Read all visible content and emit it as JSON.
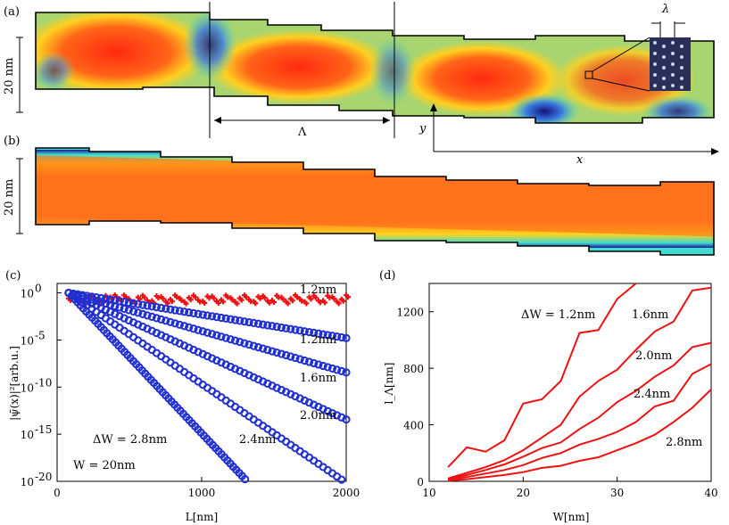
{
  "panels": {
    "a": {
      "label": "(a)",
      "scale_label": "20 nm",
      "period_label": "Λ",
      "lambda_label": "λ",
      "x_axis_label": "x",
      "y_axis_label": "y"
    },
    "b": {
      "label": "(b)",
      "scale_label": "20 nm"
    }
  },
  "chart_data": [
    {
      "id": "c",
      "panel_label": "(c)",
      "type": "scatter",
      "xlabel": "L[nm]",
      "ylabel": "|ψ̄(x)|²[arb.u.]",
      "xlim": [
        0,
        2000
      ],
      "ylog": true,
      "ylim_exponent": [
        -20,
        1
      ],
      "xticks": [
        "0",
        "1000",
        "2000"
      ],
      "yticks": [
        {
          "mantissa": "10",
          "exp": "0"
        },
        {
          "mantissa": "10",
          "exp": "-5"
        },
        {
          "mantissa": "10",
          "exp": "-10"
        },
        {
          "mantissa": "10",
          "exp": "-15"
        },
        {
          "mantissa": "10",
          "exp": "-20"
        }
      ],
      "annotations": {
        "W": "W = 20nm",
        "dW": "ΔW = 2.8nm"
      },
      "series": [
        {
          "label": "1.2nm",
          "color": "#ee1111",
          "x_range": [
            80,
            2000
          ],
          "slope_per_1000nm": 0.0,
          "noisy": true
        },
        {
          "label": "1.2nm",
          "color": "#1f2fd0",
          "x_range": [
            80,
            2000
          ],
          "slope_per_1000nm": -2.5
        },
        {
          "label": "1.6nm",
          "color": "#1f2fd0",
          "x_range": [
            80,
            2000
          ],
          "slope_per_1000nm": -4.4
        },
        {
          "label": "2.0nm",
          "color": "#1f2fd0",
          "x_range": [
            80,
            2000
          ],
          "slope_per_1000nm": -7.0
        },
        {
          "label": "2.4nm",
          "color": "#1f2fd0",
          "x_range": [
            80,
            2000
          ],
          "slope_per_1000nm": -10.5
        },
        {
          "label": "",
          "color": "#1f2fd0",
          "x_range": [
            80,
            1300
          ],
          "slope_per_1000nm": -16.2
        }
      ]
    },
    {
      "id": "d",
      "panel_label": "(d)",
      "type": "line",
      "xlabel": "W[nm]",
      "ylabel": "l_Λ[nm]",
      "xlim": [
        10,
        40
      ],
      "ylim": [
        0,
        1400
      ],
      "xticks": [
        10,
        20,
        30,
        40
      ],
      "yticks": [
        0,
        400,
        800,
        1200
      ],
      "series": [
        {
          "name": "ΔW = 1.2nm",
          "x": [
            12,
            14,
            16,
            18,
            20,
            22,
            24,
            26,
            28,
            30,
            32
          ],
          "y": [
            100,
            240,
            210,
            290,
            550,
            580,
            710,
            1050,
            1070,
            1290,
            1400
          ]
        },
        {
          "name": "1.6nm",
          "x": [
            12,
            14,
            16,
            18,
            20,
            22,
            24,
            26,
            28,
            30,
            32,
            34,
            36,
            38,
            40
          ],
          "y": [
            20,
            60,
            100,
            150,
            220,
            310,
            400,
            600,
            710,
            790,
            930,
            1060,
            1130,
            1350,
            1370
          ]
        },
        {
          "name": "2.0nm",
          "x": [
            12,
            14,
            16,
            18,
            20,
            22,
            24,
            26,
            28,
            30,
            32,
            34,
            36,
            38,
            40
          ],
          "y": [
            15,
            45,
            80,
            120,
            175,
            235,
            275,
            370,
            450,
            560,
            640,
            740,
            820,
            950,
            980
          ]
        },
        {
          "name": "2.4nm",
          "x": [
            12,
            14,
            16,
            18,
            20,
            22,
            24,
            26,
            28,
            30,
            32,
            34,
            36,
            38,
            40
          ],
          "y": [
            10,
            30,
            55,
            80,
            115,
            165,
            200,
            260,
            300,
            350,
            420,
            530,
            570,
            760,
            830
          ]
        },
        {
          "name": "2.8nm",
          "x": [
            12,
            14,
            16,
            18,
            20,
            22,
            24,
            26,
            28,
            30,
            32,
            34,
            36,
            38,
            40
          ],
          "y": [
            5,
            15,
            30,
            45,
            65,
            95,
            110,
            145,
            170,
            220,
            270,
            330,
            420,
            520,
            650
          ]
        }
      ],
      "label_positions": [
        "1.6nm",
        "2.0nm",
        "2.4nm",
        "2.8nm"
      ]
    }
  ],
  "colors": {
    "line_red": "#ee1111",
    "marker_blue": "#1f2fd0",
    "heat_hot": "#ff2a10",
    "heat_mid": "#ffd21c",
    "heat_cool": "#3fdcd0",
    "heat_cold": "#1a1a9a"
  }
}
